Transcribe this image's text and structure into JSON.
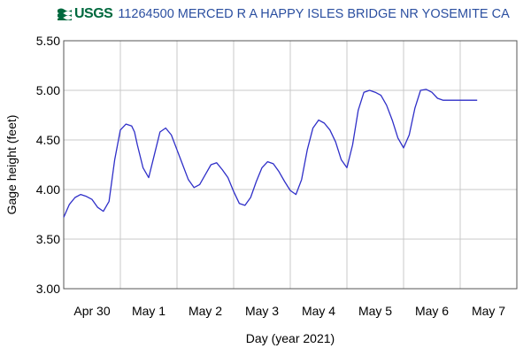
{
  "header": {
    "logo_text": "USGS",
    "title": "11264500 MERCED R A HAPPY ISLES BRIDGE NR YOSEMITE CA"
  },
  "colors": {
    "series": "#2f2fc8",
    "grid": "#c8c8c8",
    "logo": "#00693e",
    "title": "#2b4fa0"
  },
  "chart_data": {
    "type": "line",
    "title": "11264500 MERCED R A HAPPY ISLES BRIDGE NR YOSEMITE CA",
    "xlabel": "Day (year 2021)",
    "ylabel": "Gage height (feet)",
    "ylim": [
      3.0,
      5.5
    ],
    "xlim": [
      0,
      8
    ],
    "grid": true,
    "x_tick_labels": [
      "Apr 30",
      "May 1",
      "May 2",
      "May 3",
      "May 4",
      "May 5",
      "May 6",
      "May 7"
    ],
    "y_tick_labels": [
      "5.50",
      "5.00",
      "4.50",
      "4.00",
      "3.50",
      "3.00"
    ],
    "y_ticks": [
      5.5,
      5.0,
      4.5,
      4.0,
      3.5,
      3.0
    ],
    "series": [
      {
        "x": [
          0.0,
          0.1,
          0.2,
          0.3,
          0.4,
          0.5,
          0.6,
          0.7,
          0.8,
          0.9,
          1.0,
          1.1,
          1.2,
          1.25,
          1.3,
          1.4,
          1.5,
          1.6,
          1.7,
          1.8,
          1.9,
          2.0,
          2.1,
          2.2,
          2.3,
          2.4,
          2.5,
          2.6,
          2.7,
          2.8,
          2.9,
          3.0,
          3.1,
          3.2,
          3.3,
          3.4,
          3.5,
          3.6,
          3.7,
          3.8,
          3.9,
          4.0,
          4.1,
          4.2,
          4.3,
          4.4,
          4.5,
          4.6,
          4.7,
          4.8,
          4.9,
          5.0,
          5.1,
          5.2,
          5.3,
          5.4,
          5.5,
          5.6,
          5.7,
          5.8,
          5.9,
          6.0,
          6.1,
          6.2,
          6.3,
          6.4,
          6.5,
          6.6,
          6.7,
          6.8,
          6.9,
          7.0,
          7.1,
          7.2,
          7.3
        ],
        "y": [
          3.72,
          3.85,
          3.92,
          3.95,
          3.93,
          3.9,
          3.82,
          3.78,
          3.88,
          4.3,
          4.6,
          4.66,
          4.64,
          4.58,
          4.45,
          4.22,
          4.12,
          4.35,
          4.58,
          4.62,
          4.55,
          4.4,
          4.25,
          4.1,
          4.02,
          4.05,
          4.15,
          4.25,
          4.27,
          4.2,
          4.12,
          3.98,
          3.86,
          3.84,
          3.92,
          4.08,
          4.22,
          4.28,
          4.26,
          4.18,
          4.08,
          3.99,
          3.95,
          4.1,
          4.4,
          4.62,
          4.7,
          4.67,
          4.6,
          4.48,
          4.3,
          4.22,
          4.45,
          4.8,
          4.98,
          5.0,
          4.98,
          4.95,
          4.85,
          4.7,
          4.52,
          4.42,
          4.55,
          4.82,
          5.0,
          5.01,
          4.98,
          4.92,
          4.9,
          4.9,
          4.9,
          4.9,
          4.9,
          4.9,
          4.9
        ]
      }
    ]
  }
}
